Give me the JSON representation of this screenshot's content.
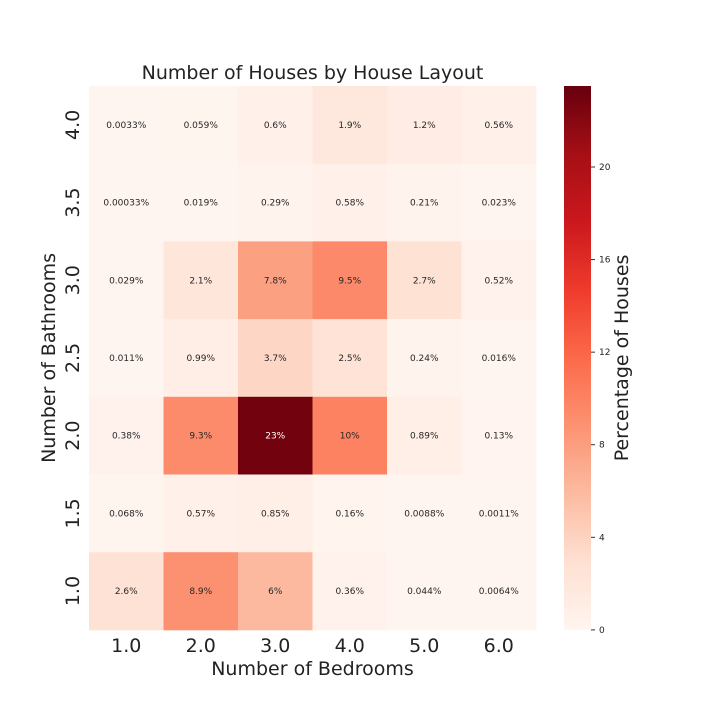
{
  "chart_data": {
    "type": "heatmap",
    "title": "Number of Houses by House Layout",
    "xlabel": "Number of Bedrooms",
    "ylabel": "Number of Bathrooms",
    "x_categories": [
      "1.0",
      "2.0",
      "3.0",
      "4.0",
      "5.0",
      "6.0"
    ],
    "y_categories": [
      "4.0",
      "3.5",
      "3.0",
      "2.5",
      "2.0",
      "1.5",
      "1.0"
    ],
    "values": [
      [
        0.0033,
        0.059,
        0.6,
        1.9,
        1.2,
        0.56
      ],
      [
        0.00033,
        0.019,
        0.29,
        0.58,
        0.21,
        0.023
      ],
      [
        0.029,
        2.1,
        7.8,
        9.5,
        2.7,
        0.52
      ],
      [
        0.011,
        0.99,
        3.7,
        2.5,
        0.24,
        0.016
      ],
      [
        0.38,
        9.3,
        23,
        10,
        0.89,
        0.13
      ],
      [
        0.068,
        0.57,
        0.85,
        0.16,
        0.0088,
        0.0011
      ],
      [
        2.6,
        8.9,
        6,
        0.36,
        0.044,
        0.0064
      ]
    ],
    "annotations": [
      [
        "0.0033%",
        "0.059%",
        "0.6%",
        "1.9%",
        "1.2%",
        "0.56%"
      ],
      [
        "0.00033%",
        "0.019%",
        "0.29%",
        "0.58%",
        "0.21%",
        "0.023%"
      ],
      [
        "0.029%",
        "2.1%",
        "7.8%",
        "9.5%",
        "2.7%",
        "0.52%"
      ],
      [
        "0.011%",
        "0.99%",
        "3.7%",
        "2.5%",
        "0.24%",
        "0.016%"
      ],
      [
        "0.38%",
        "9.3%",
        "23%",
        "10%",
        "0.89%",
        "0.13%"
      ],
      [
        "0.068%",
        "0.57%",
        "0.85%",
        "0.16%",
        "0.0088%",
        "0.0011%"
      ],
      [
        "2.6%",
        "8.9%",
        "6%",
        "0.36%",
        "0.044%",
        "0.0064%"
      ]
    ],
    "colorbar": {
      "label": "Percentage of Houses",
      "range": [
        0,
        23.5
      ],
      "ticks": [
        0,
        4,
        8,
        12,
        16,
        20
      ],
      "colormap": "Reds",
      "colors": [
        "#fff5f0",
        "#fee0d2",
        "#fcbba1",
        "#fc9272",
        "#fb6a4a",
        "#ef3b2c",
        "#cb181d",
        "#a50f15",
        "#67000d"
      ]
    },
    "grid": false
  }
}
